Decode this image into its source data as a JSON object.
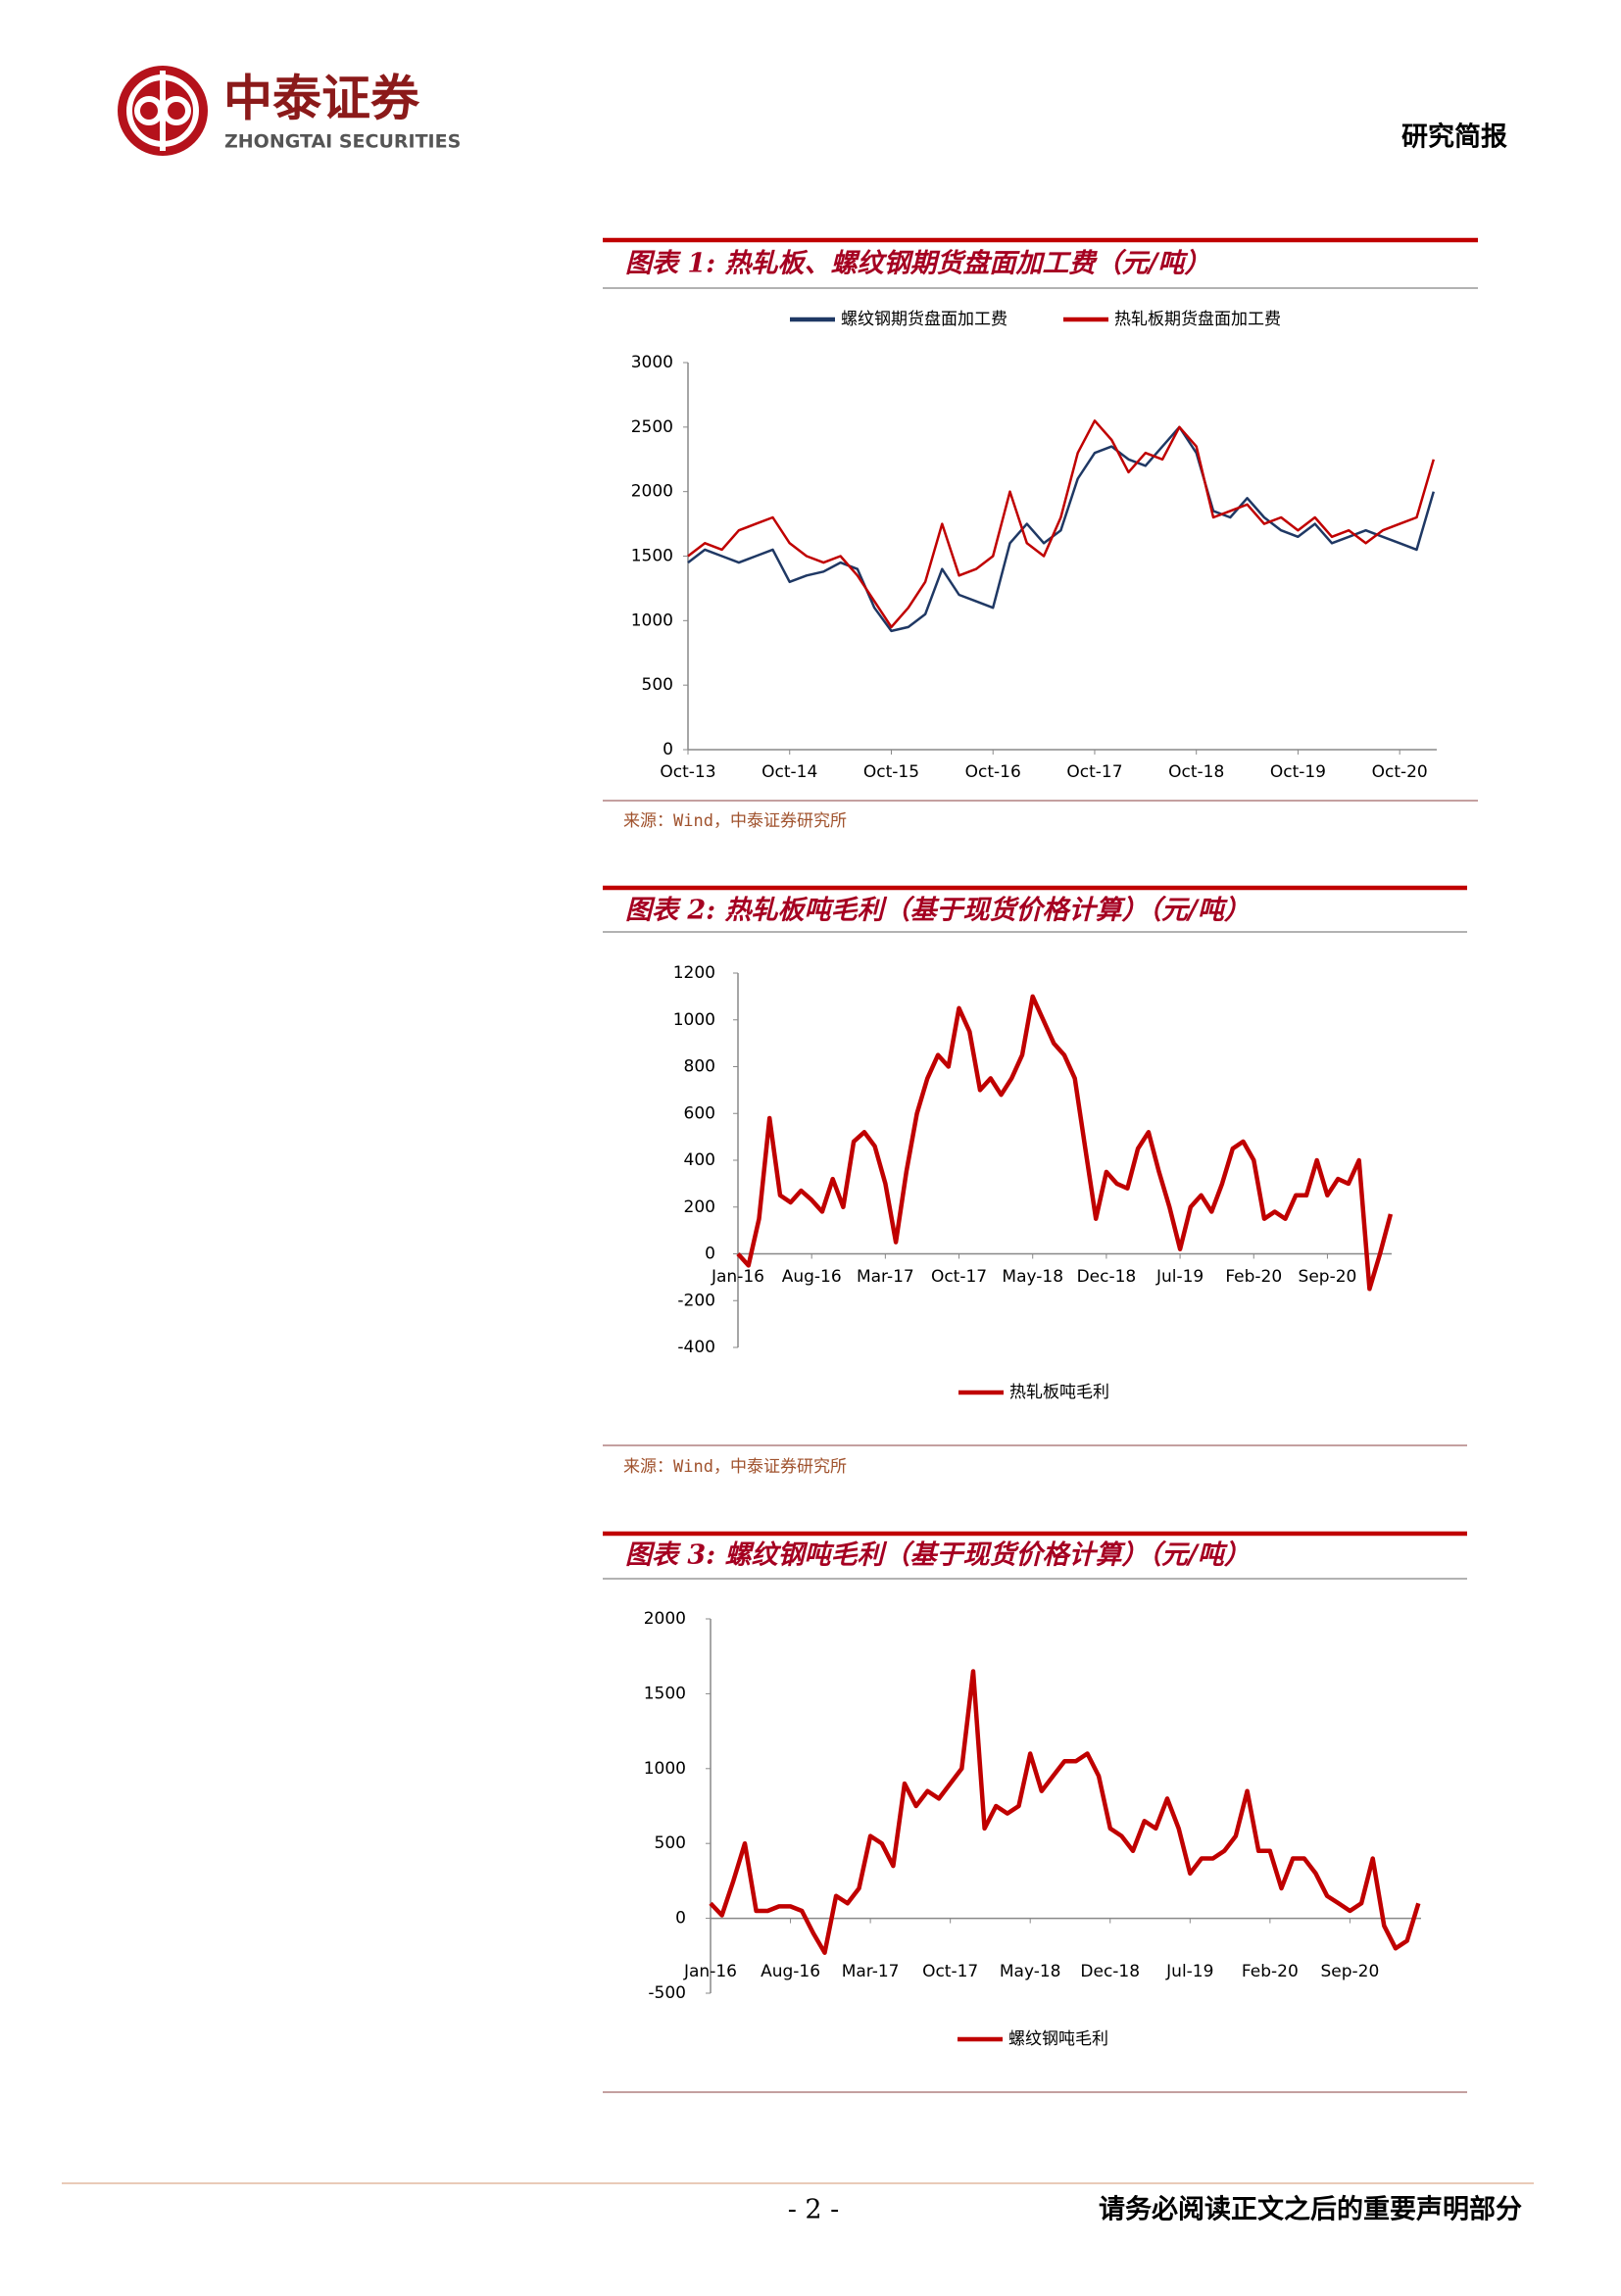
{
  "header": {
    "logo_cn": "中泰证券",
    "logo_en": "ZHONGTAI SECURITIES",
    "doc_type": "研究简报"
  },
  "footer": {
    "page": "- 2 -",
    "disclaimer": "请务必阅读正文之后的重要声明部分"
  },
  "chart_data": [
    {
      "type": "line",
      "title": "图表 1: 热轧板、螺纹钢期货盘面加工费（元/吨）",
      "source": "来源：Wind，中泰证券研究所",
      "legend": "top",
      "x": [
        "Oct-13",
        "Dec-13",
        "Feb-14",
        "Apr-14",
        "Jun-14",
        "Aug-14",
        "Oct-14",
        "Dec-14",
        "Feb-15",
        "Apr-15",
        "Jun-15",
        "Aug-15",
        "Oct-15",
        "Dec-15",
        "Feb-16",
        "Apr-16",
        "Jun-16",
        "Aug-16",
        "Oct-16",
        "Dec-16",
        "Feb-17",
        "Apr-17",
        "Jun-17",
        "Aug-17",
        "Oct-17",
        "Dec-17",
        "Feb-18",
        "Apr-18",
        "Jun-18",
        "Aug-18",
        "Oct-18",
        "Dec-18",
        "Feb-19",
        "Apr-19",
        "Jun-19",
        "Aug-19",
        "Oct-19",
        "Dec-19",
        "Feb-20",
        "Apr-20",
        "Jun-20",
        "Aug-20",
        "Oct-20",
        "Dec-20",
        "Feb-21"
      ],
      "xticks": [
        "Oct-13",
        "Oct-14",
        "Oct-15",
        "Oct-16",
        "Oct-17",
        "Oct-18",
        "Oct-19",
        "Oct-20"
      ],
      "ylim": [
        0,
        3000
      ],
      "yticks": [
        0,
        500,
        1000,
        1500,
        2000,
        2500,
        3000
      ],
      "series": [
        {
          "name": "螺纹钢期货盘面加工费",
          "color": "#1f3864",
          "values": [
            1450,
            1550,
            1500,
            1450,
            1500,
            1550,
            1300,
            1350,
            1380,
            1450,
            1400,
            1100,
            920,
            950,
            1050,
            1400,
            1200,
            1150,
            1100,
            1600,
            1750,
            1600,
            1700,
            2100,
            2300,
            2350,
            2250,
            2200,
            2350,
            2500,
            2300,
            1850,
            1800,
            1950,
            1800,
            1700,
            1650,
            1750,
            1600,
            1650,
            1700,
            1650,
            1600,
            1550,
            2000
          ]
        },
        {
          "name": "热轧板期货盘面加工费",
          "color": "#c00000",
          "values": [
            1500,
            1600,
            1550,
            1700,
            1750,
            1800,
            1600,
            1500,
            1450,
            1500,
            1350,
            1150,
            950,
            1100,
            1300,
            1750,
            1350,
            1400,
            1500,
            2000,
            1600,
            1500,
            1800,
            2300,
            2550,
            2400,
            2150,
            2300,
            2250,
            2500,
            2350,
            1800,
            1850,
            1900,
            1750,
            1800,
            1700,
            1800,
            1650,
            1700,
            1600,
            1700,
            1750,
            1800,
            2250
          ]
        }
      ]
    },
    {
      "type": "line",
      "title": "图表 2: 热轧板吨毛利（基于现货价格计算）（元/吨）",
      "source": "来源：Wind，中泰证券研究所",
      "legend": "bottom",
      "x": [
        "Jan-16",
        "Feb-16",
        "Mar-16",
        "Apr-16",
        "May-16",
        "Jun-16",
        "Jul-16",
        "Aug-16",
        "Sep-16",
        "Oct-16",
        "Nov-16",
        "Dec-16",
        "Jan-17",
        "Feb-17",
        "Mar-17",
        "Apr-17",
        "May-17",
        "Jun-17",
        "Jul-17",
        "Aug-17",
        "Sep-17",
        "Oct-17",
        "Nov-17",
        "Dec-17",
        "Jan-18",
        "Feb-18",
        "Mar-18",
        "Apr-18",
        "May-18",
        "Jun-18",
        "Jul-18",
        "Aug-18",
        "Sep-18",
        "Oct-18",
        "Nov-18",
        "Dec-18",
        "Jan-19",
        "Feb-19",
        "Mar-19",
        "Apr-19",
        "May-19",
        "Jun-19",
        "Jul-19",
        "Aug-19",
        "Sep-19",
        "Oct-19",
        "Nov-19",
        "Dec-19",
        "Jan-20",
        "Feb-20",
        "Mar-20",
        "Apr-20",
        "May-20",
        "Jun-20",
        "Jul-20",
        "Aug-20",
        "Sep-20",
        "Oct-20",
        "Nov-20",
        "Dec-20",
        "Jan-21",
        "Feb-21",
        "Mar-21"
      ],
      "xticks": [
        "Jan-16",
        "Aug-16",
        "Mar-17",
        "Oct-17",
        "May-18",
        "Dec-18",
        "Jul-19",
        "Feb-20",
        "Sep-20"
      ],
      "ylim": [
        -400,
        1200
      ],
      "yticks": [
        -400,
        -200,
        0,
        200,
        400,
        600,
        800,
        1000,
        1200
      ],
      "series": [
        {
          "name": "热轧板吨毛利",
          "color": "#c00000",
          "values": [
            0,
            -50,
            150,
            580,
            250,
            220,
            270,
            230,
            180,
            320,
            200,
            480,
            520,
            460,
            300,
            50,
            350,
            600,
            750,
            850,
            800,
            1050,
            950,
            700,
            750,
            680,
            750,
            850,
            1100,
            1000,
            900,
            850,
            750,
            450,
            150,
            350,
            300,
            280,
            450,
            520,
            350,
            200,
            20,
            200,
            250,
            180,
            300,
            450,
            480,
            400,
            150,
            180,
            150,
            250,
            250,
            400,
            250,
            320,
            300,
            400,
            -150,
            0,
            170
          ]
        }
      ]
    },
    {
      "type": "line",
      "title": "图表 3: 螺纹钢吨毛利（基于现货价格计算）（元/吨）",
      "legend": "bottom",
      "x": [
        "Jan-16",
        "Feb-16",
        "Mar-16",
        "Apr-16",
        "May-16",
        "Jun-16",
        "Jul-16",
        "Aug-16",
        "Sep-16",
        "Oct-16",
        "Nov-16",
        "Dec-16",
        "Jan-17",
        "Feb-17",
        "Mar-17",
        "Apr-17",
        "May-17",
        "Jun-17",
        "Jul-17",
        "Aug-17",
        "Sep-17",
        "Oct-17",
        "Nov-17",
        "Dec-17",
        "Jan-18",
        "Feb-18",
        "Mar-18",
        "Apr-18",
        "May-18",
        "Jun-18",
        "Jul-18",
        "Aug-18",
        "Sep-18",
        "Oct-18",
        "Nov-18",
        "Dec-18",
        "Jan-19",
        "Feb-19",
        "Mar-19",
        "Apr-19",
        "May-19",
        "Jun-19",
        "Jul-19",
        "Aug-19",
        "Sep-19",
        "Oct-19",
        "Nov-19",
        "Dec-19",
        "Jan-20",
        "Feb-20",
        "Mar-20",
        "Apr-20",
        "May-20",
        "Jun-20",
        "Jul-20",
        "Aug-20",
        "Sep-20",
        "Oct-20",
        "Nov-20",
        "Dec-20",
        "Jan-21",
        "Feb-21",
        "Mar-21"
      ],
      "xticks": [
        "Jan-16",
        "Aug-16",
        "Mar-17",
        "Oct-17",
        "May-18",
        "Dec-18",
        "Jul-19",
        "Feb-20",
        "Sep-20"
      ],
      "ylim": [
        -500,
        2000
      ],
      "yticks": [
        -500,
        0,
        500,
        1000,
        1500,
        2000
      ],
      "series": [
        {
          "name": "螺纹钢吨毛利",
          "color": "#c00000",
          "values": [
            100,
            20,
            250,
            500,
            50,
            50,
            80,
            80,
            50,
            -100,
            -230,
            150,
            100,
            200,
            550,
            500,
            350,
            900,
            750,
            850,
            800,
            900,
            1000,
            1650,
            600,
            750,
            700,
            750,
            1100,
            850,
            950,
            1050,
            1050,
            1100,
            950,
            600,
            550,
            450,
            650,
            600,
            800,
            600,
            300,
            400,
            400,
            450,
            550,
            850,
            450,
            450,
            200,
            400,
            400,
            300,
            150,
            100,
            50,
            100,
            400,
            -50,
            -200,
            -150,
            100
          ]
        }
      ]
    }
  ]
}
